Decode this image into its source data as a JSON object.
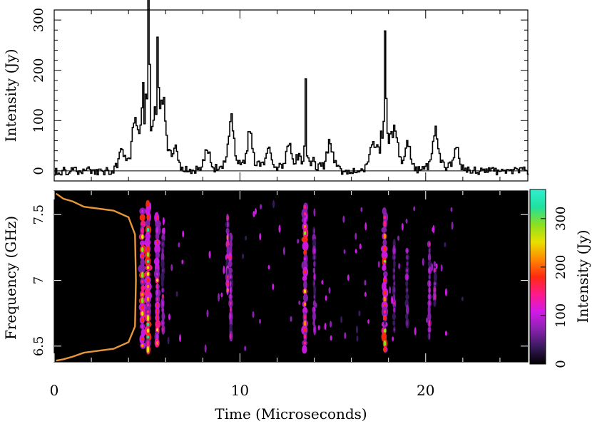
{
  "chart_data": [
    {
      "type": "line",
      "panel": "top",
      "ylabel": "Intensity (Jy)",
      "xlabel": "",
      "ylim": [
        -20,
        320
      ],
      "yticks": [
        0,
        100,
        200,
        300
      ],
      "xlim": [
        0,
        25.5
      ],
      "grid": false,
      "baseline": 0,
      "noise_level": 8,
      "peaks": [
        {
          "t": 3.6,
          "v": 30
        },
        {
          "t": 4.3,
          "v": 60
        },
        {
          "t": 4.75,
          "v": 130
        },
        {
          "t": 5.05,
          "v": 295
        },
        {
          "t": 5.55,
          "v": 190
        },
        {
          "t": 5.85,
          "v": 85
        },
        {
          "t": 6.5,
          "v": 30
        },
        {
          "t": 8.2,
          "v": 35
        },
        {
          "t": 9.5,
          "v": 90
        },
        {
          "t": 10.5,
          "v": 65
        },
        {
          "t": 11.5,
          "v": 35
        },
        {
          "t": 12.6,
          "v": 45
        },
        {
          "t": 13.5,
          "v": 138
        },
        {
          "t": 14.8,
          "v": 45
        },
        {
          "t": 17.1,
          "v": 35
        },
        {
          "t": 17.8,
          "v": 255
        },
        {
          "t": 18.3,
          "v": 50
        },
        {
          "t": 19.0,
          "v": 45
        },
        {
          "t": 20.5,
          "v": 70
        },
        {
          "t": 21.6,
          "v": 40
        }
      ]
    },
    {
      "type": "heatmap",
      "panel": "bottom",
      "xlabel": "Time (Microseconds)",
      "ylabel": "Frequency (GHz)",
      "xlim": [
        0,
        25.5
      ],
      "ylim": [
        6.38,
        7.68
      ],
      "xticks": [
        0,
        10,
        20
      ],
      "yticks": [
        6.5,
        7,
        7.5
      ],
      "colorbar": {
        "label": "Intensity (Jy)",
        "range": [
          0,
          360
        ],
        "ticks": [
          0,
          100,
          200,
          300
        ],
        "colors": [
          "#000000",
          "#3a1a5e",
          "#8a22b0",
          "#d21ae8",
          "#ff1a8a",
          "#ff2a10",
          "#ff8a00",
          "#e8e000",
          "#8ae020",
          "#20e0a0",
          "#30f0d0"
        ]
      },
      "bandpass_color": "#e8963a",
      "bandpass": [
        {
          "t": 0.1,
          "f": 7.66
        },
        {
          "t": 0.5,
          "f": 7.62
        },
        {
          "t": 1.0,
          "f": 7.6
        },
        {
          "t": 1.6,
          "f": 7.56
        },
        {
          "t": 3.2,
          "f": 7.53
        },
        {
          "t": 4.0,
          "f": 7.48
        },
        {
          "t": 4.35,
          "f": 7.35
        },
        {
          "t": 4.4,
          "f": 7.0
        },
        {
          "t": 4.35,
          "f": 6.65
        },
        {
          "t": 4.0,
          "f": 6.53
        },
        {
          "t": 3.2,
          "f": 6.48
        },
        {
          "t": 1.6,
          "f": 6.45
        },
        {
          "t": 1.0,
          "f": 6.42
        },
        {
          "t": 0.5,
          "f": 6.4
        },
        {
          "t": 0.1,
          "f": 6.39
        }
      ],
      "bursts": [
        {
          "t": 4.75,
          "width": 0.22,
          "f_min": 6.48,
          "f_max": 7.55,
          "intensity": 300
        },
        {
          "t": 5.05,
          "width": 0.22,
          "f_min": 6.45,
          "f_max": 7.6,
          "intensity": 340
        },
        {
          "t": 5.55,
          "width": 0.2,
          "f_min": 6.5,
          "f_max": 7.5,
          "intensity": 280
        },
        {
          "t": 5.85,
          "width": 0.12,
          "f_min": 6.6,
          "f_max": 7.4,
          "intensity": 150
        },
        {
          "t": 9.35,
          "width": 0.14,
          "f_min": 6.9,
          "f_max": 7.5,
          "intensity": 220
        },
        {
          "t": 9.5,
          "width": 0.14,
          "f_min": 6.55,
          "f_max": 7.35,
          "intensity": 200
        },
        {
          "t": 13.5,
          "width": 0.2,
          "f_min": 6.45,
          "f_max": 7.58,
          "intensity": 320
        },
        {
          "t": 14.0,
          "width": 0.12,
          "f_min": 6.6,
          "f_max": 7.4,
          "intensity": 130
        },
        {
          "t": 17.8,
          "width": 0.22,
          "f_min": 6.45,
          "f_max": 7.55,
          "intensity": 340
        },
        {
          "t": 18.3,
          "width": 0.12,
          "f_min": 6.6,
          "f_max": 7.3,
          "intensity": 150
        },
        {
          "t": 19.0,
          "width": 0.12,
          "f_min": 6.65,
          "f_max": 7.25,
          "intensity": 140
        },
        {
          "t": 20.2,
          "width": 0.12,
          "f_min": 6.55,
          "f_max": 7.3,
          "intensity": 140
        },
        {
          "t": 20.5,
          "width": 0.12,
          "f_min": 6.8,
          "f_max": 7.15,
          "intensity": 160
        }
      ]
    }
  ]
}
